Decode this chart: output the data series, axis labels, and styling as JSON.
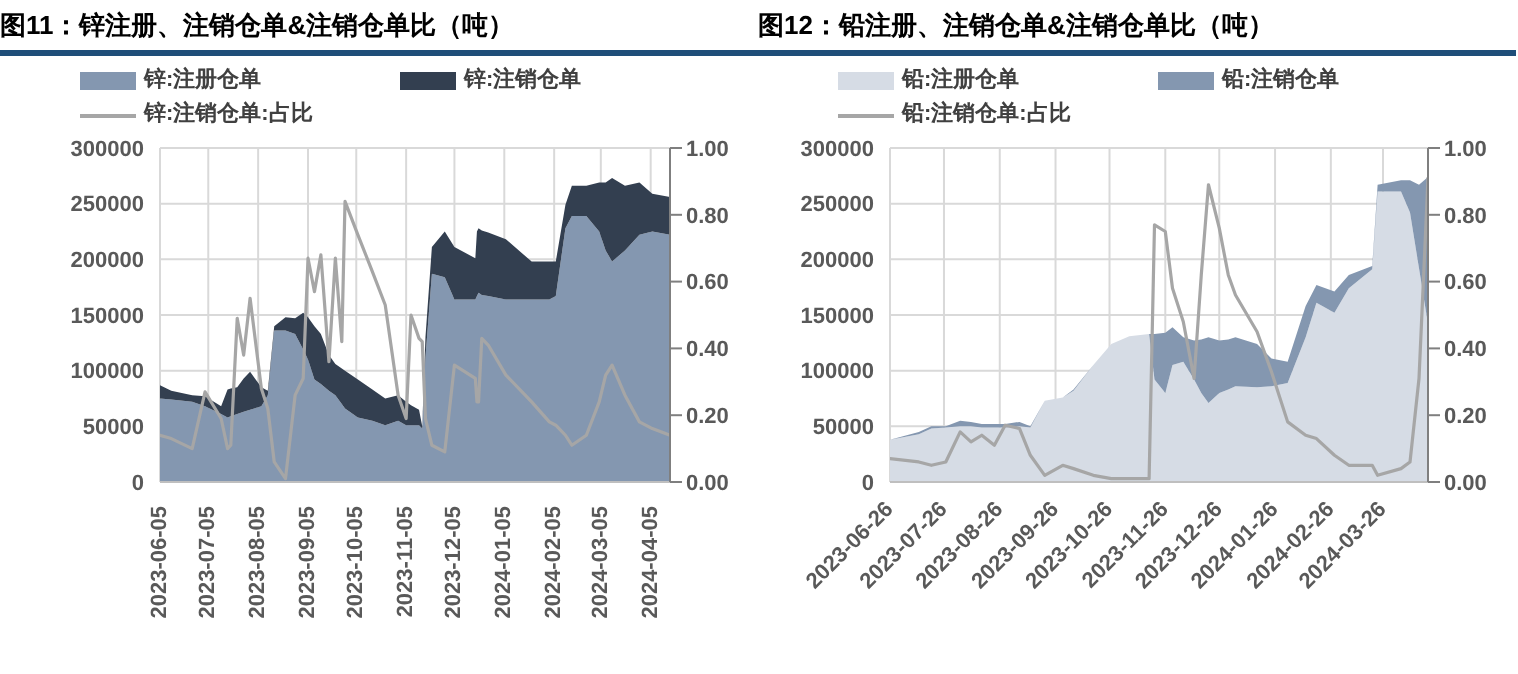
{
  "chart_data": [
    {
      "type": "area",
      "title": "图11：锌注册、注销仓单&注销仓单比（吨）",
      "stacked": true,
      "legend": "top",
      "grid": true,
      "x": [
        "2023-06-05",
        "2023-06-12",
        "2023-06-25",
        "2023-07-03",
        "2023-07-13",
        "2023-07-17",
        "2023-07-19",
        "2023-07-23",
        "2023-07-27",
        "2023-07-31",
        "2023-08-07",
        "2023-08-11",
        "2023-08-15",
        "2023-08-22",
        "2023-08-28",
        "2023-09-02",
        "2023-09-05",
        "2023-09-09",
        "2023-09-13",
        "2023-09-18",
        "2023-09-22",
        "2023-09-26",
        "2023-09-28",
        "2023-10-06",
        "2023-10-15",
        "2023-10-23",
        "2023-10-31",
        "2023-11-05",
        "2023-11-08",
        "2023-11-13",
        "2023-11-15",
        "2023-11-17",
        "2023-11-21",
        "2023-11-29",
        "2023-12-05",
        "2023-12-18",
        "2023-12-19",
        "2023-12-20",
        "2023-12-22",
        "2023-12-26",
        "2024-01-06",
        "2024-01-22",
        "2024-02-02",
        "2024-02-06",
        "2024-02-12",
        "2024-02-16",
        "2024-02-25",
        "2024-03-04",
        "2024-03-08",
        "2024-03-12",
        "2024-03-20",
        "2024-03-29",
        "2024-04-06",
        "2024-04-17"
      ],
      "series": [
        {
          "name": "锌:注册仓单",
          "color": "#8497b0",
          "values": [
            75000,
            74000,
            72000,
            68000,
            61000,
            58000,
            59000,
            61000,
            63000,
            65000,
            68000,
            78000,
            136000,
            136000,
            133000,
            119000,
            110000,
            92000,
            88000,
            82000,
            78000,
            70000,
            66000,
            58000,
            55000,
            51000,
            55000,
            51000,
            51000,
            51000,
            48000,
            112000,
            187000,
            184000,
            164000,
            164000,
            167000,
            170000,
            168000,
            167000,
            164000,
            164000,
            164000,
            167000,
            228000,
            239000,
            239000,
            225000,
            208000,
            198000,
            208000,
            222000,
            225000,
            222000
          ]
        },
        {
          "name": "锌:注销仓单",
          "color": "#333f50",
          "values": [
            12000,
            8000,
            6000,
            9000,
            7000,
            25000,
            25000,
            24000,
            30000,
            34000,
            17000,
            4000,
            4000,
            12000,
            14000,
            33000,
            38000,
            48000,
            45000,
            32000,
            28000,
            32000,
            34000,
            34000,
            28000,
            24000,
            23000,
            21000,
            18000,
            14000,
            2000,
            18000,
            24000,
            41000,
            47000,
            37000,
            58000,
            58000,
            58000,
            57000,
            54000,
            34000,
            34000,
            31000,
            21000,
            27000,
            27000,
            44000,
            61000,
            75000,
            58000,
            47000,
            34000,
            34000
          ]
        },
        {
          "name": "锌:注销仓单:占比",
          "type": "line",
          "axis": "y2",
          "color": "#a6a6a6",
          "values": [
            0.14,
            0.13,
            0.1,
            0.27,
            0.19,
            0.1,
            0.11,
            0.49,
            0.38,
            0.55,
            0.28,
            0.22,
            0.06,
            0.01,
            0.26,
            0.31,
            0.67,
            0.57,
            0.68,
            0.36,
            0.67,
            0.42,
            0.84,
            0.74,
            0.63,
            0.53,
            0.26,
            0.19,
            0.5,
            0.43,
            0.42,
            0.19,
            0.11,
            0.09,
            0.35,
            0.31,
            0.24,
            0.24,
            0.43,
            0.41,
            0.32,
            0.24,
            0.18,
            0.17,
            0.14,
            0.11,
            0.14,
            0.24,
            0.32,
            0.35,
            0.26,
            0.18,
            0.16,
            0.14
          ]
        }
      ],
      "xlim": [
        "2023-06-05",
        "2024-04-17"
      ],
      "xticks": [
        "2023-06-05",
        "2023-07-05",
        "2023-08-05",
        "2023-09-05",
        "2023-10-05",
        "2023-11-05",
        "2023-12-05",
        "2024-01-05",
        "2024-02-05",
        "2024-03-05",
        "2024-04-05"
      ],
      "ylim": [
        0,
        300000
      ],
      "yticks": [
        0,
        50000,
        100000,
        150000,
        200000,
        250000,
        300000
      ],
      "y2lim": [
        0,
        1
      ],
      "y2ticks": [
        {
          "value": 0,
          "label": "0.00"
        },
        {
          "value": 0.2,
          "label": "0.20"
        },
        {
          "value": 0.4,
          "label": "0.40"
        },
        {
          "value": 0.6,
          "label": "0.60"
        },
        {
          "value": 0.8,
          "label": "0.80"
        },
        {
          "value": 1,
          "label": "1.00"
        }
      ]
    },
    {
      "type": "area",
      "title": "图12：铅注册、注销仓单&注销仓单比（吨）",
      "stacked": true,
      "legend": "top",
      "grid": true,
      "x": [
        "2023-06-26",
        "2023-07-12",
        "2023-07-19",
        "2023-07-27",
        "2023-08-04",
        "2023-08-10",
        "2023-08-16",
        "2023-08-23",
        "2023-08-29",
        "2023-09-06",
        "2023-09-12",
        "2023-09-20",
        "2023-09-30",
        "2023-10-06",
        "2023-10-17",
        "2023-10-27",
        "2023-11-06",
        "2023-11-17",
        "2023-11-20",
        "2023-11-26",
        "2023-11-30",
        "2023-12-06",
        "2023-12-12",
        "2023-12-16",
        "2023-12-20",
        "2023-12-26",
        "2023-12-31",
        "2024-01-04",
        "2024-01-16",
        "2024-01-24",
        "2024-02-02",
        "2024-02-12",
        "2024-02-18",
        "2024-02-28",
        "2024-03-07",
        "2024-03-20",
        "2024-03-23",
        "2024-04-05",
        "2024-04-10",
        "2024-04-15",
        "2024-04-20"
      ],
      "series": [
        {
          "name": "铅:注册仓单",
          "color": "#d6dce5",
          "values": [
            38000,
            43000,
            48000,
            49000,
            50000,
            50000,
            49000,
            49000,
            49000,
            50000,
            49000,
            73000,
            76000,
            82000,
            105000,
            124000,
            131000,
            133000,
            92000,
            80000,
            105000,
            108000,
            92000,
            80000,
            71000,
            80000,
            83000,
            86000,
            85000,
            86000,
            89000,
            130000,
            161000,
            152000,
            174000,
            191000,
            261000,
            261000,
            242000,
            192000,
            142000
          ]
        },
        {
          "name": "铅:注销仓单",
          "color": "#8497b0",
          "values": [
            0,
            2000,
            2000,
            1000,
            5000,
            4000,
            3000,
            3000,
            3000,
            4000,
            1000,
            0,
            0,
            1000,
            0,
            0,
            0,
            0,
            41000,
            54000,
            34000,
            22000,
            35000,
            48000,
            59000,
            47000,
            45000,
            44000,
            39000,
            25000,
            19000,
            28000,
            16000,
            19000,
            12000,
            3000,
            6000,
            10000,
            29000,
            75000,
            132000
          ]
        },
        {
          "name": "铅:注销仓单:占比",
          "type": "line",
          "axis": "y2",
          "color": "#a6a6a6",
          "values": [
            0.07,
            0.06,
            0.05,
            0.06,
            0.15,
            0.12,
            0.14,
            0.11,
            0.17,
            0.16,
            0.08,
            0.02,
            0.05,
            0.04,
            0.02,
            0.01,
            0.01,
            0.01,
            0.77,
            0.75,
            0.58,
            0.48,
            0.31,
            0.62,
            0.89,
            0.76,
            0.62,
            0.56,
            0.45,
            0.33,
            0.18,
            0.14,
            0.13,
            0.08,
            0.05,
            0.05,
            0.02,
            0.04,
            0.06,
            0.31,
            0.91
          ]
        }
      ],
      "xlim": [
        "2023-06-26",
        "2024-04-20"
      ],
      "xticks": [
        "2023-06-26",
        "2023-07-26",
        "2023-08-26",
        "2023-09-26",
        "2023-10-26",
        "2023-11-26",
        "2023-12-26",
        "2024-01-26",
        "2024-02-26",
        "2024-03-26"
      ],
      "ylim": [
        0,
        300000
      ],
      "yticks": [
        0,
        50000,
        100000,
        150000,
        200000,
        250000,
        300000
      ],
      "y2lim": [
        0,
        1
      ],
      "y2ticks": [
        {
          "value": 0,
          "label": "0.00"
        },
        {
          "value": 0.2,
          "label": "0.20"
        },
        {
          "value": 0.4,
          "label": "0.40"
        },
        {
          "value": 0.6,
          "label": "0.60"
        },
        {
          "value": 0.8,
          "label": "0.80"
        },
        {
          "value": 1,
          "label": "1.00"
        }
      ]
    }
  ]
}
